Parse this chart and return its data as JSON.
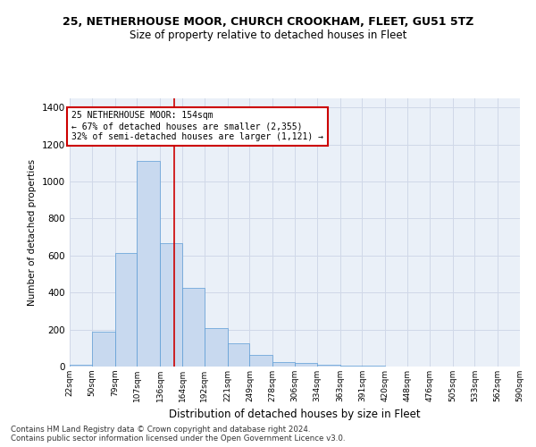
{
  "title": "25, NETHERHOUSE MOOR, CHURCH CROOKHAM, FLEET, GU51 5TZ",
  "subtitle": "Size of property relative to detached houses in Fleet",
  "xlabel": "Distribution of detached houses by size in Fleet",
  "ylabel": "Number of detached properties",
  "bar_color": "#c8d9ef",
  "bar_edge_color": "#5b9bd5",
  "bins": [
    22,
    50,
    79,
    107,
    136,
    164,
    192,
    221,
    249,
    278,
    306,
    334,
    363,
    391,
    420,
    448,
    476,
    505,
    533,
    562,
    590
  ],
  "values": [
    10,
    190,
    615,
    1110,
    665,
    425,
    210,
    125,
    65,
    25,
    20,
    10,
    5,
    3,
    1,
    1,
    0,
    0,
    0,
    1
  ],
  "property_size": 154,
  "annotation_line1": "25 NETHERHOUSE MOOR: 154sqm",
  "annotation_line2": "← 67% of detached houses are smaller (2,355)",
  "annotation_line3": "32% of semi-detached houses are larger (1,121) →",
  "annotation_box_color": "#ffffff",
  "annotation_box_edge": "#cc0000",
  "vline_color": "#cc0000",
  "ylim": [
    0,
    1450
  ],
  "yticks": [
    0,
    200,
    400,
    600,
    800,
    1000,
    1200,
    1400
  ],
  "footer1": "Contains HM Land Registry data © Crown copyright and database right 2024.",
  "footer2": "Contains public sector information licensed under the Open Government Licence v3.0.",
  "grid_color": "#d0d8e8",
  "background_color": "#eaf0f8"
}
